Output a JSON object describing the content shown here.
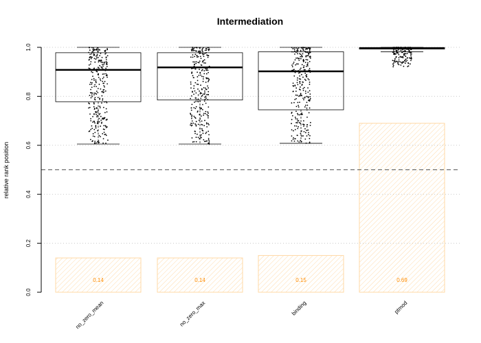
{
  "chart_data": {
    "type": "bar",
    "title": "Intermediation",
    "xlabel": "",
    "ylabel": "relative rank position",
    "ylim": [
      0,
      1
    ],
    "yticks": [
      "0.0",
      "0.2",
      "0.4",
      "0.6",
      "0.8",
      "1.0"
    ],
    "categories": [
      "no_zero_mean",
      "no_zero_max",
      "binding",
      "ptmod"
    ],
    "series": [
      {
        "values": [
          0.14,
          0.14,
          0.15,
          0.69
        ]
      }
    ],
    "bar_labels": [
      "0.14",
      "0.14",
      "0.15",
      "0.69"
    ],
    "boxplots": [
      {
        "min": 0.605,
        "q1": 0.778,
        "median": 0.908,
        "q3": 0.978,
        "max": 1.0
      },
      {
        "min": 0.605,
        "q1": 0.785,
        "median": 0.918,
        "q3": 0.978,
        "max": 1.0
      },
      {
        "min": 0.608,
        "q1": 0.745,
        "median": 0.902,
        "q3": 0.982,
        "max": 1.0
      },
      {
        "min": 0.982,
        "q1": 0.993,
        "median": 0.997,
        "q3": 0.999,
        "max": 1.0,
        "points_min": 0.92
      }
    ],
    "reference_line": 0.5,
    "grid": true,
    "colors": {
      "bar": "#ff9900",
      "bar_label": "#ff8c00",
      "box": "#000000",
      "grid": "#c8c8c8",
      "reference": "#555555"
    }
  }
}
